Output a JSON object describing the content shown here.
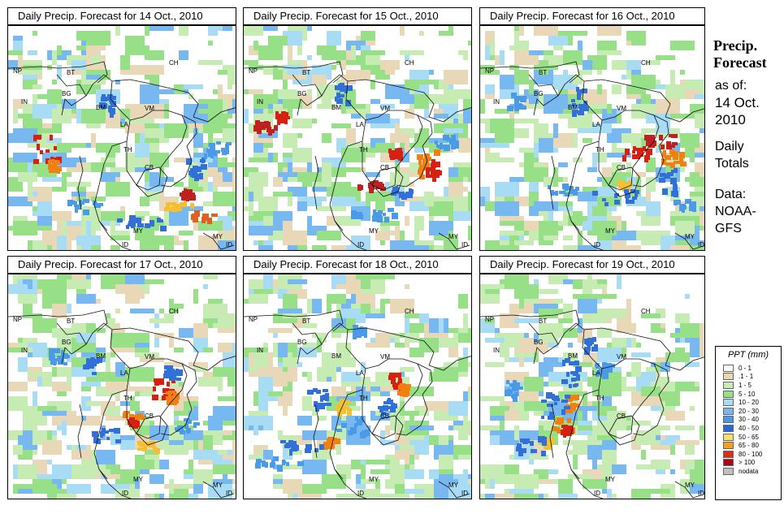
{
  "panels": [
    {
      "title": "Daily Precip. Forecast for  14 Oct., 2010",
      "seed": 11,
      "regions": [
        "NP",
        "BT",
        "BG",
        "IN",
        "BM",
        "CH",
        "VM",
        "LA",
        "TH",
        "CB",
        "MY",
        "ID",
        "MY",
        "ID"
      ],
      "rain": [
        [
          45,
          150,
          30,
          34,
          "#d82010"
        ],
        [
          55,
          170,
          14,
          16,
          "#f28010"
        ],
        [
          210,
          220,
          40,
          10,
          "#f5c030"
        ],
        [
          240,
          232,
          30,
          10,
          "#e06020"
        ],
        [
          218,
          205,
          14,
          10,
          "#c02020"
        ],
        [
          230,
          175,
          22,
          26,
          "#3070d8"
        ],
        [
          160,
          240,
          60,
          14,
          "#3070d8"
        ],
        [
          120,
          95,
          18,
          22,
          "#3070d8"
        ],
        [
          255,
          150,
          30,
          16,
          "#4a9ae8"
        ],
        [
          90,
          220,
          40,
          14,
          "#4a9ae8"
        ]
      ]
    },
    {
      "title": "Daily Precip. Forecast for  15 Oct., 2010",
      "seed": 23,
      "regions": [
        "NP",
        "BT",
        "BG",
        "IN",
        "BM",
        "CH",
        "VM",
        "LA",
        "TH",
        "CB",
        "MY",
        "ID",
        "MY",
        "ID"
      ],
      "rain": [
        [
          25,
          122,
          30,
          12,
          "#c02020"
        ],
        [
          45,
          110,
          14,
          10,
          "#d82010"
        ],
        [
          225,
          170,
          26,
          36,
          "#f28010"
        ],
        [
          230,
          175,
          14,
          22,
          "#d82010"
        ],
        [
          155,
          195,
          30,
          10,
          "#c02020"
        ],
        [
          185,
          155,
          14,
          10,
          "#d82010"
        ],
        [
          190,
          200,
          40,
          16,
          "#3070d8"
        ],
        [
          120,
          80,
          20,
          30,
          "#3070d8"
        ],
        [
          150,
          230,
          70,
          12,
          "#4a9ae8"
        ],
        [
          250,
          140,
          30,
          14,
          "#4a9ae8"
        ]
      ]
    },
    {
      "title": "Daily Precip. Forecast for  16 Oct., 2010",
      "seed": 37,
      "regions": [
        "NP",
        "BT",
        "BG",
        "IN",
        "BM",
        "CH",
        "VM",
        "LA",
        "TH",
        "CB",
        "MY",
        "ID",
        "MY",
        "ID"
      ],
      "rain": [
        [
          220,
          140,
          40,
          22,
          "#c02020"
        ],
        [
          235,
          160,
          24,
          18,
          "#f28010"
        ],
        [
          190,
          155,
          30,
          14,
          "#d82010"
        ],
        [
          175,
          195,
          16,
          10,
          "#f5c030"
        ],
        [
          230,
          190,
          20,
          30,
          "#3070d8"
        ],
        [
          120,
          90,
          16,
          30,
          "#3070d8"
        ],
        [
          160,
          210,
          70,
          18,
          "#3070d8"
        ],
        [
          40,
          90,
          20,
          20,
          "#4a9ae8"
        ],
        [
          250,
          220,
          24,
          14,
          "#4a9ae8"
        ],
        [
          100,
          200,
          40,
          12,
          "#4a9ae8"
        ]
      ]
    },
    {
      "title": "Daily Precip. Forecast for  17 Oct., 2010",
      "seed": 51,
      "regions": [
        "NP",
        "BT",
        "BG",
        "IN",
        "BM",
        "CH",
        "VM",
        "LA",
        "TH",
        "CB",
        "MY",
        "ID",
        "MY",
        "ID"
      ],
      "rain": [
        [
          190,
          140,
          26,
          26,
          "#d82010"
        ],
        [
          200,
          150,
          14,
          14,
          "#f28010"
        ],
        [
          150,
          175,
          22,
          14,
          "#f28010"
        ],
        [
          152,
          180,
          10,
          8,
          "#d82010"
        ],
        [
          170,
          210,
          22,
          10,
          "#f5c030"
        ],
        [
          200,
          120,
          18,
          16,
          "#3070d8"
        ],
        [
          120,
          195,
          40,
          18,
          "#3070d8"
        ],
        [
          100,
          110,
          20,
          22,
          "#3070d8"
        ],
        [
          220,
          185,
          30,
          16,
          "#4a9ae8"
        ],
        [
          60,
          100,
          20,
          18,
          "#4a9ae8"
        ]
      ]
    },
    {
      "title": "Daily Precip. Forecast for  18 Oct., 2010",
      "seed": 67,
      "regions": [
        "NP",
        "BT",
        "BG",
        "IN",
        "BM",
        "CH",
        "VM",
        "LA",
        "TH",
        "CB",
        "MY",
        "ID",
        "MY",
        "ID"
      ],
      "rain": [
        [
          185,
          130,
          16,
          18,
          "#d82010"
        ],
        [
          195,
          140,
          12,
          12,
          "#f28010"
        ],
        [
          120,
          160,
          16,
          18,
          "#f5c030"
        ],
        [
          105,
          205,
          14,
          10,
          "#f28010"
        ],
        [
          70,
          210,
          50,
          12,
          "#3070d8"
        ],
        [
          90,
          150,
          24,
          30,
          "#3070d8"
        ],
        [
          175,
          160,
          20,
          20,
          "#3070d8"
        ],
        [
          40,
          230,
          60,
          12,
          "#4a9ae8"
        ],
        [
          130,
          185,
          40,
          20,
          "#4a9ae8"
        ],
        [
          140,
          70,
          20,
          16,
          "#4a9ae8"
        ]
      ]
    },
    {
      "title": "Daily Precip. Forecast for  19 Oct., 2010",
      "seed": 83,
      "regions": [
        "NP",
        "BT",
        "BG",
        "IN",
        "BM",
        "CH",
        "VM",
        "LA",
        "TH",
        "CB",
        "MY",
        "ID",
        "MY",
        "ID"
      ],
      "rain": [
        [
          100,
          185,
          26,
          20,
          "#f28010"
        ],
        [
          105,
          190,
          12,
          10,
          "#d82010"
        ],
        [
          110,
          155,
          14,
          18,
          "#f28010"
        ],
        [
          80,
          205,
          14,
          10,
          "#f5c030"
        ],
        [
          110,
          120,
          20,
          40,
          "#3070d8"
        ],
        [
          90,
          160,
          30,
          30,
          "#3070d8"
        ],
        [
          60,
          210,
          40,
          22,
          "#3070d8"
        ],
        [
          135,
          85,
          14,
          16,
          "#3070d8"
        ],
        [
          150,
          115,
          20,
          14,
          "#4a9ae8"
        ],
        [
          40,
          140,
          20,
          20,
          "#4a9ae8"
        ]
      ]
    }
  ],
  "sidebar": {
    "title_line1": "Precip.",
    "title_line2": "Forecast",
    "asof_label": "as of:",
    "date_line1": "14 Oct.",
    "date_line2": "2010",
    "totals_line1": "Daily",
    "totals_line2": "Totals",
    "data_line1": "Data:",
    "data_line2": "NOAA-",
    "data_line3": "GFS"
  },
  "legend": {
    "title": "PPT (mm)",
    "items": [
      {
        "label": "0 - 1",
        "color": "#ffffff"
      },
      {
        "label": ".1 - 1",
        "color": "#e8d8b8"
      },
      {
        "label": "1 - 5",
        "color": "#c6ecb4"
      },
      {
        "label": "5 - 10",
        "color": "#98e088"
      },
      {
        "label": "10 - 20",
        "color": "#a8dcf4"
      },
      {
        "label": "20 - 30",
        "color": "#78b8f0"
      },
      {
        "label": "30 - 40",
        "color": "#4a9ae8"
      },
      {
        "label": "40 - 50",
        "color": "#2868d8"
      },
      {
        "label": "50 - 65",
        "color": "#f5e070"
      },
      {
        "label": "65 - 80",
        "color": "#f5a020"
      },
      {
        "label": "80 - 100",
        "color": "#d83010"
      },
      {
        "label": "> 100",
        "color": "#a80818"
      },
      {
        "label": "nodata",
        "color": "#c0c0c0"
      }
    ]
  }
}
